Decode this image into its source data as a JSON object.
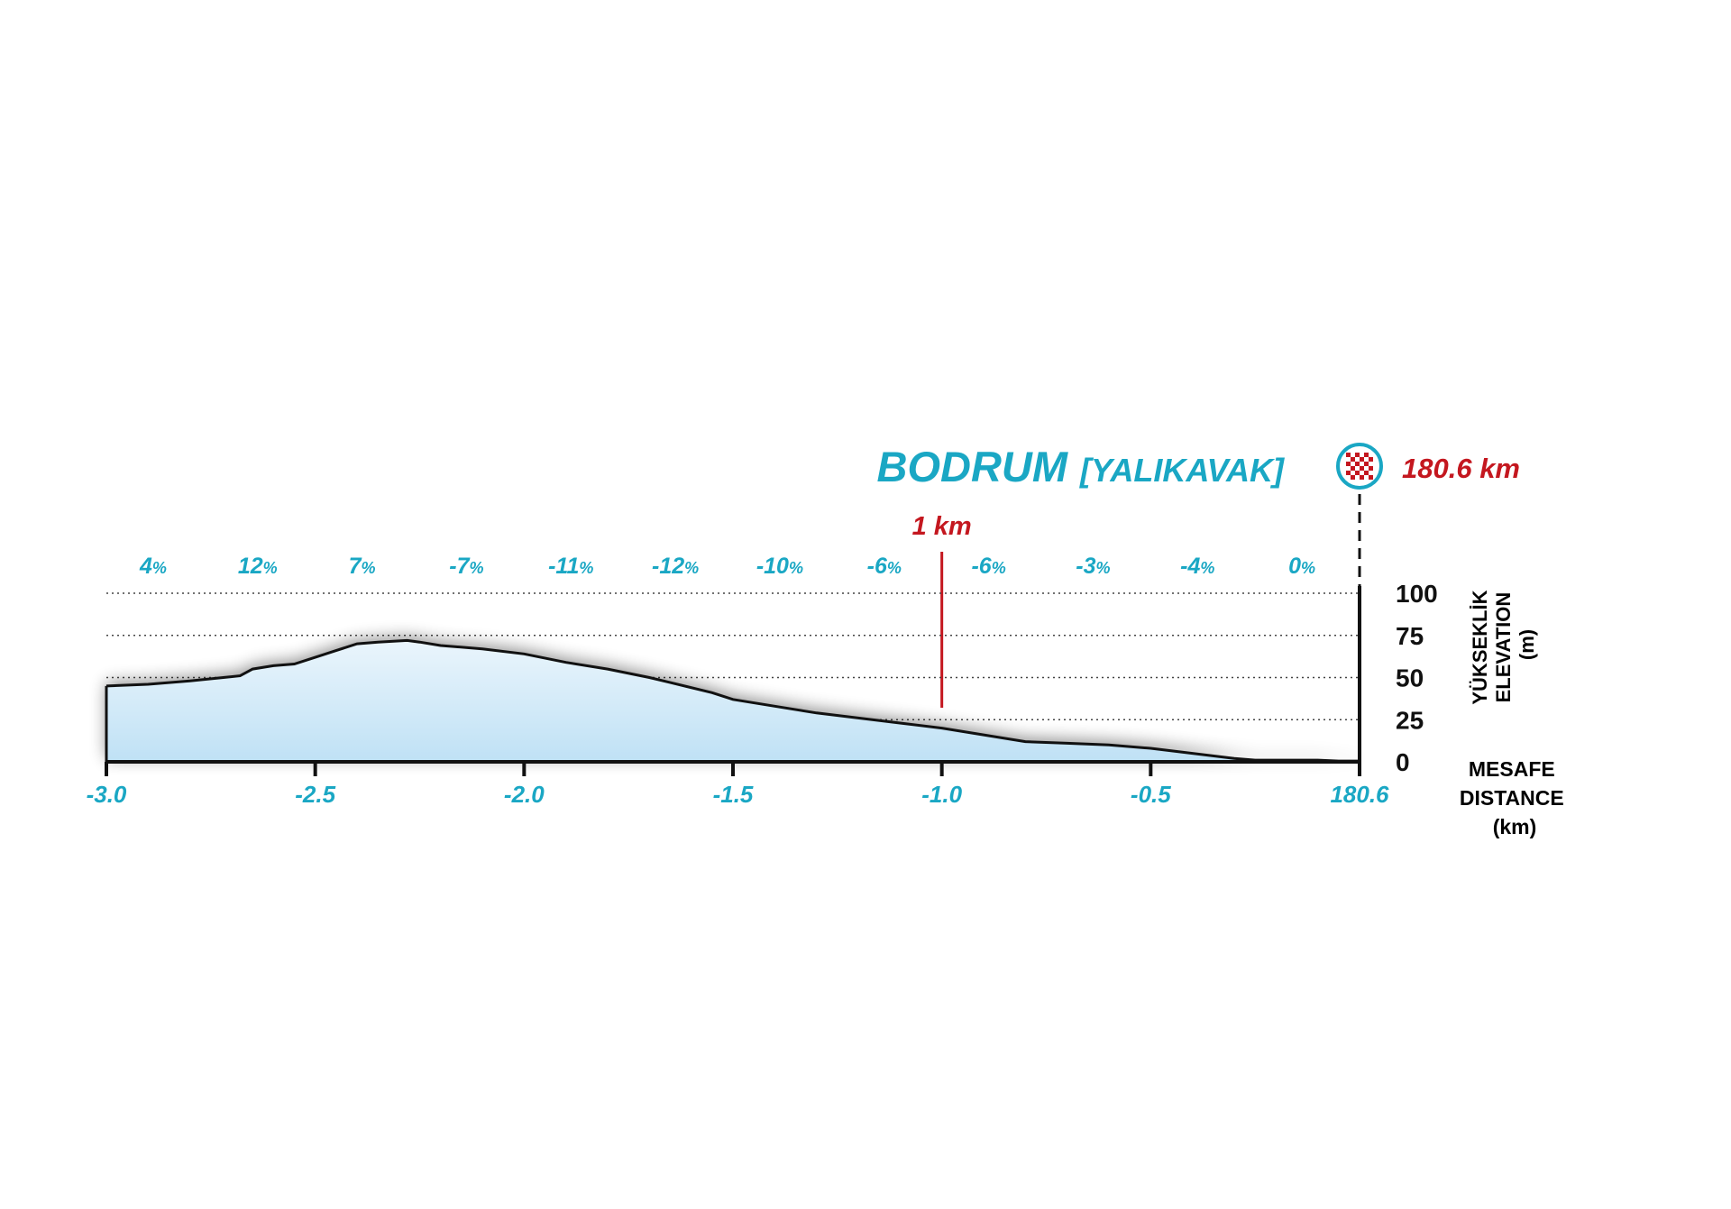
{
  "colors": {
    "accent": "#1aa7c4",
    "finish": "#c4171f",
    "axis": "#111111",
    "fill_top": "#eaf5fc",
    "fill_bottom": "#bfe1f5",
    "grid": "#444444"
  },
  "chart_data": {
    "type": "area",
    "finish_place": "BODRUM",
    "finish_place_sub": "[YALIKAVAK]",
    "finish_distance_label": "180.6 km",
    "finish_icon": "checkered-flag-icon",
    "marker_label": "1 km",
    "marker_x": -1.0,
    "ylabel_lines": [
      "YÜKSEKLİK",
      "ELEVATION",
      "(m)"
    ],
    "xlabel_lines": [
      "MESAFE",
      "DISTANCE",
      "(km)"
    ],
    "xlim": [
      -3.0,
      0.0
    ],
    "ylim": [
      0,
      100
    ],
    "x_ticks": [
      {
        "x": -3.0,
        "label": "-3.0"
      },
      {
        "x": -2.5,
        "label": "-2.5"
      },
      {
        "x": -2.0,
        "label": "-2.0"
      },
      {
        "x": -1.5,
        "label": "-1.5"
      },
      {
        "x": -1.0,
        "label": "-1.0"
      },
      {
        "x": -0.5,
        "label": "-0.5"
      },
      {
        "x": 0.0,
        "label": "180.6"
      }
    ],
    "y_ticks": [
      0,
      25,
      50,
      75,
      100
    ],
    "grid_lines": [
      25,
      50,
      75,
      100
    ],
    "gradients": [
      "4",
      "12",
      "7",
      "-7",
      "-11",
      "-12",
      "-10",
      "-6",
      "-6",
      "-3",
      "-4",
      "0"
    ],
    "gradient_unit": "%",
    "profile": {
      "x": [
        -3.0,
        -2.9,
        -2.8,
        -2.72,
        -2.68,
        -2.65,
        -2.6,
        -2.55,
        -2.5,
        -2.45,
        -2.4,
        -2.35,
        -2.28,
        -2.25,
        -2.2,
        -2.1,
        -2.0,
        -1.9,
        -1.8,
        -1.7,
        -1.65,
        -1.55,
        -1.5,
        -1.4,
        -1.3,
        -1.2,
        -1.1,
        -1.0,
        -0.9,
        -0.8,
        -0.7,
        -0.6,
        -0.5,
        -0.4,
        -0.3,
        -0.25,
        -0.2,
        -0.1,
        -0.05,
        0.0
      ],
      "y": [
        45,
        46,
        48,
        50,
        51,
        55,
        57,
        58,
        62,
        66,
        70,
        71,
        72,
        71,
        69,
        67,
        64,
        59,
        55,
        50,
        47,
        41,
        37,
        33,
        29,
        26,
        23,
        20,
        16,
        12,
        11,
        10,
        8,
        5,
        2,
        1,
        1,
        1,
        0.5,
        0.5
      ]
    }
  }
}
